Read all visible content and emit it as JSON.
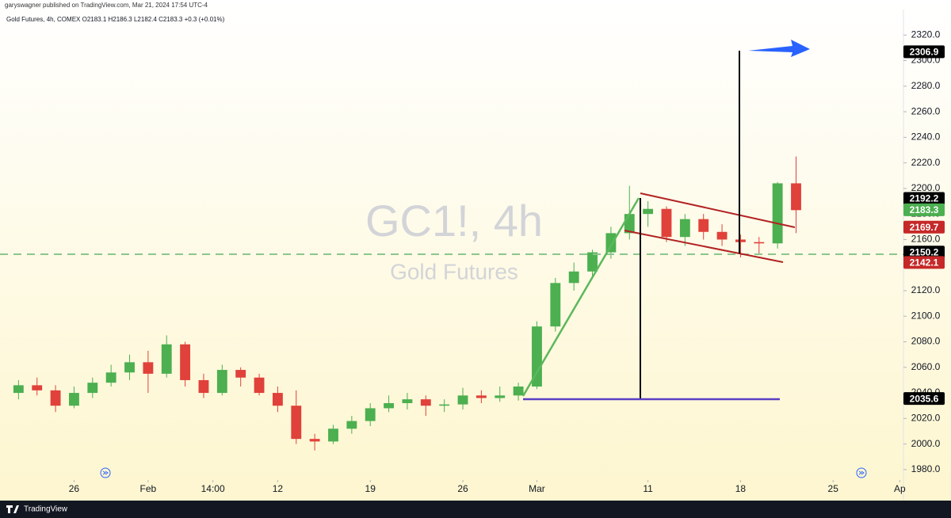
{
  "header": {
    "publisher": "garyswagner published on TradingView.com, Mar 21, 2024 17:54 UTC-4"
  },
  "footer": {
    "brand": "TradingView"
  },
  "chart_data": {
    "type": "candlestick",
    "title": "GC1!, 4h",
    "subtitle": "Gold Futures",
    "legend_line": "Gold Futures, 4h, COMEX  O2183.1  H2186.3  L2182.4  C2183.3  +0.3 (+0.01%)",
    "x": [
      -24,
      -23,
      -22,
      -21,
      -20,
      -19,
      -18,
      -17,
      -16,
      -15,
      -14,
      -13,
      -12,
      -11,
      -10,
      -9,
      -8,
      -7,
      -6,
      -5,
      -4,
      -3,
      -2,
      -1,
      0,
      1,
      2,
      3,
      4,
      5,
      6,
      7,
      8,
      9,
      10,
      11,
      12,
      13,
      14,
      15,
      16,
      17,
      18
    ],
    "open": [
      2040,
      2046,
      2042,
      2030,
      2040,
      2048,
      2056,
      2064,
      2055,
      2078,
      2050,
      2040,
      2058,
      2052,
      2040,
      2030,
      2004,
      2002,
      2012,
      2018,
      2028,
      2032,
      2035,
      2030,
      2031,
      2038,
      2036,
      2038,
      2045,
      2092,
      2126,
      2135,
      2150,
      2165,
      2180,
      2184,
      2162,
      2176,
      2166,
      2160,
      2158,
      2157,
      2204
    ],
    "high": [
      2050,
      2052,
      2046,
      2045,
      2052,
      2062,
      2070,
      2073,
      2085,
      2080,
      2055,
      2062,
      2060,
      2055,
      2045,
      2042,
      2008,
      2015,
      2022,
      2032,
      2038,
      2040,
      2038,
      2035,
      2044,
      2042,
      2045,
      2048,
      2096,
      2130,
      2142,
      2152,
      2170,
      2202,
      2190,
      2186,
      2180,
      2180,
      2172,
      2164,
      2162,
      2205,
      2225
    ],
    "low": [
      2035,
      2038,
      2025,
      2028,
      2036,
      2045,
      2050,
      2040,
      2052,
      2045,
      2036,
      2038,
      2045,
      2038,
      2025,
      2000,
      1995,
      2000,
      2008,
      2014,
      2025,
      2027,
      2022,
      2025,
      2027,
      2032,
      2033,
      2034,
      2043,
      2088,
      2120,
      2130,
      2145,
      2160,
      2170,
      2158,
      2155,
      2160,
      2155,
      2146,
      2148,
      2153,
      2165
    ],
    "close": [
      2046,
      2042,
      2030,
      2040,
      2048,
      2056,
      2064,
      2055,
      2078,
      2050,
      2040,
      2058,
      2052,
      2040,
      2030,
      2004,
      2002,
      2012,
      2018,
      2028,
      2032,
      2035,
      2030,
      2031,
      2038,
      2036,
      2038,
      2045,
      2092,
      2126,
      2135,
      2150,
      2165,
      2180,
      2184,
      2162,
      2176,
      2166,
      2160,
      2158,
      2157,
      2204,
      2183
    ],
    "up_color": "#4caf50",
    "down_color": "#e0413a",
    "xlim": [
      -25,
      23.8
    ],
    "xticks": [
      {
        "value": -21,
        "label": "26"
      },
      {
        "value": -17,
        "label": "Feb"
      },
      {
        "value": -13.5,
        "label": "14:00"
      },
      {
        "value": -10,
        "label": "12"
      },
      {
        "value": -5,
        "label": "19"
      },
      {
        "value": 0,
        "label": "26"
      },
      {
        "value": 4,
        "label": "Mar"
      },
      {
        "value": 10,
        "label": "11"
      },
      {
        "value": 15,
        "label": "18"
      },
      {
        "value": 20,
        "label": "25"
      },
      {
        "value": 23.6,
        "label": "Ap"
      }
    ],
    "ylim": [
      1957,
      2340
    ],
    "yticks": [
      {
        "value": 1980,
        "label": "1980.0"
      },
      {
        "value": 2000,
        "label": "2000.0"
      },
      {
        "value": 2020,
        "label": "2020.0"
      },
      {
        "value": 2040,
        "label": "2040.0"
      },
      {
        "value": 2060,
        "label": "2060.0"
      },
      {
        "value": 2080,
        "label": "2080.0"
      },
      {
        "value": 2100,
        "label": "2100.0"
      },
      {
        "value": 2120,
        "label": "2120.0"
      },
      {
        "value": 2140,
        "label": "2140.0"
      },
      {
        "value": 2160,
        "label": "2160.0"
      },
      {
        "value": 2180,
        "label": "2180.0"
      },
      {
        "value": 2200,
        "label": "2200.0"
      },
      {
        "value": 2220,
        "label": "2220.0"
      },
      {
        "value": 2240,
        "label": "2240.0"
      },
      {
        "value": 2260,
        "label": "2260.0"
      },
      {
        "value": 2280,
        "label": "2280.0"
      },
      {
        "value": 2300,
        "label": "2300.0"
      },
      {
        "value": 2320,
        "label": "2320.0"
      }
    ],
    "price_labels": [
      {
        "value": 2306.9,
        "color": "#000000"
      },
      {
        "value": 2192.2,
        "color": "#000000"
      },
      {
        "value": 2183.3,
        "color": "#4caf50"
      },
      {
        "value": 2169.7,
        "color": "#c62828"
      },
      {
        "value": 2150.2,
        "color": "#000000"
      },
      {
        "value": 2142.1,
        "color": "#c62828"
      },
      {
        "value": 2035.6,
        "color": "#000000"
      }
    ]
  }
}
